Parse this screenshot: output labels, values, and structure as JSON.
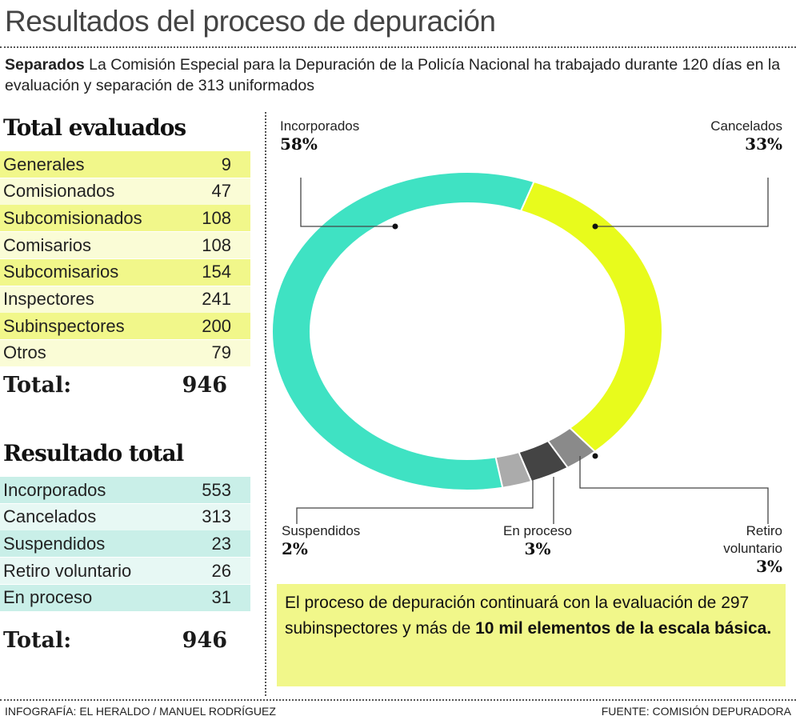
{
  "title": "Resultados del proceso de depuración",
  "subtitle": {
    "lead": "Separados",
    "text": " La Comisión Especial para la Depuración de la Policía Nacional ha trabajado durante 120 días en la evaluación y separación de 313 uniformados"
  },
  "evaluados": {
    "heading": "Total evaluados",
    "rows": [
      {
        "label": "Generales",
        "value": "9"
      },
      {
        "label": "Comisionados",
        "value": "47"
      },
      {
        "label": "Subcomisionados",
        "value": "108"
      },
      {
        "label": "Comisarios",
        "value": "108"
      },
      {
        "label": "Subcomisarios",
        "value": "154"
      },
      {
        "label": "Inspectores",
        "value": "241"
      },
      {
        "label": "Subinspectores",
        "value": "200"
      },
      {
        "label": "Otros",
        "value": "79"
      }
    ],
    "total_label": "Total:",
    "total_value": "946"
  },
  "resultado": {
    "heading": "Resultado total",
    "rows": [
      {
        "label": "Incorporados",
        "value": "553"
      },
      {
        "label": "Cancelados",
        "value": "313"
      },
      {
        "label": "Suspendidos",
        "value": "23"
      },
      {
        "label": "Retiro voluntario",
        "value": "26"
      },
      {
        "label": "En proceso",
        "value": "31"
      }
    ],
    "total_label": "Total:",
    "total_value": "946"
  },
  "chart_data": {
    "type": "pie",
    "donut": true,
    "slices": [
      {
        "name": "Cancelados",
        "value": 313,
        "pct": "33%",
        "color": "#e8fb1c"
      },
      {
        "name": "Retiro voluntario",
        "value": 26,
        "pct": "3%",
        "color": "#8a8a8a"
      },
      {
        "name": "En proceso",
        "value": 31,
        "pct": "3%",
        "color": "#444444"
      },
      {
        "name": "Suspendidos",
        "value": 23,
        "pct": "2%",
        "color": "#ababab"
      },
      {
        "name": "Incorporados",
        "value": 553,
        "pct": "58%",
        "color": "#3fe2c3"
      }
    ],
    "labels": {
      "retiro_line1": "Retiro",
      "retiro_line2": "voluntario"
    }
  },
  "note": {
    "text": "El proceso de depuración continuará con la evaluación de 297 subinspectores y más de ",
    "bold": "10 mil elementos de la escala básica."
  },
  "footer": {
    "credit": "Infografía: EL HERALDO / MANUEL RODRÍGUEZ",
    "source": "Fuente: Comisión Depuradora"
  }
}
